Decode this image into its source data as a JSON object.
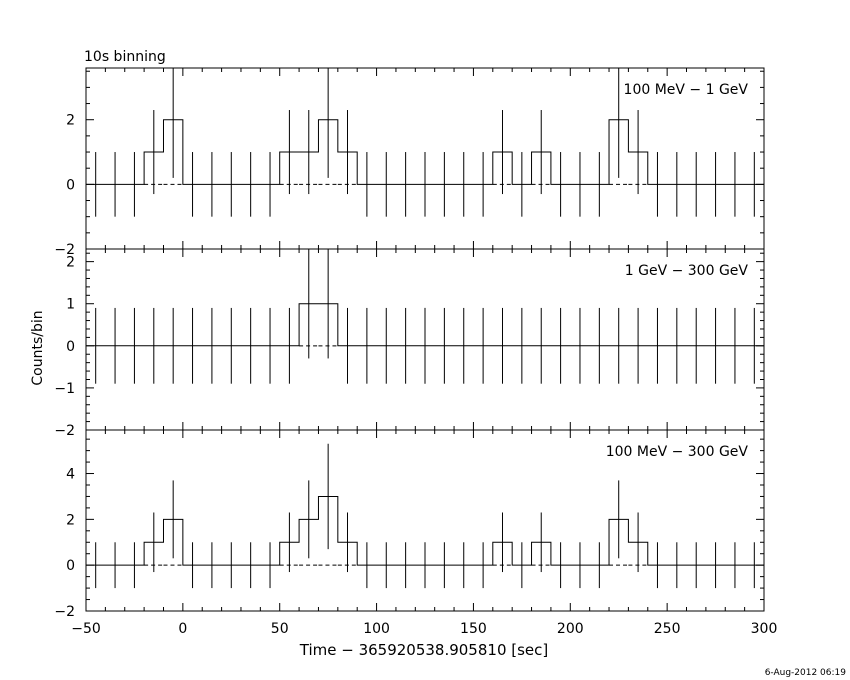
{
  "header": {
    "title": "10s binning"
  },
  "footer": {
    "timestamp": "6-Aug-2012 06:19"
  },
  "axes": {
    "xlabel": "Time − 365920538.905810 [sec]",
    "ylabel": "Counts/bin"
  },
  "chart_data": [
    {
      "type": "step",
      "label": "100 MeV − 1 GeV",
      "xlim": [
        -50,
        300
      ],
      "ylim": [
        -2,
        3.6
      ],
      "yticks": [
        -2,
        0,
        2
      ],
      "bin_width": 10,
      "bin_centers": [
        -45,
        -35,
        -25,
        -15,
        -5,
        5,
        15,
        25,
        35,
        45,
        55,
        65,
        75,
        85,
        95,
        105,
        115,
        125,
        135,
        145,
        155,
        165,
        175,
        185,
        195,
        205,
        215,
        225,
        235,
        245,
        255,
        265,
        275,
        285,
        295
      ],
      "counts": [
        0,
        0,
        0,
        1,
        2,
        0,
        0,
        0,
        0,
        0,
        1,
        1,
        2,
        1,
        0,
        0,
        0,
        0,
        0,
        0,
        0,
        1,
        0,
        1,
        0,
        0,
        0,
        2,
        1,
        0,
        0,
        0,
        0,
        0,
        0
      ],
      "errors": [
        1,
        1,
        1,
        1.3,
        1.8,
        1,
        1,
        1,
        1,
        1,
        1.3,
        1.3,
        1.8,
        1.3,
        1,
        1,
        1,
        1,
        1,
        1,
        1,
        1.3,
        1,
        1.3,
        1,
        1,
        1,
        1.8,
        1.3,
        1,
        1,
        1,
        1,
        1,
        1
      ],
      "model": [
        0,
        0,
        0,
        0,
        0,
        0,
        0,
        0,
        0,
        0,
        0,
        0,
        0,
        0,
        0,
        0,
        0,
        0,
        0,
        0,
        0,
        0,
        0,
        0,
        0,
        0,
        0,
        0,
        0,
        0,
        0,
        0,
        0,
        0,
        0
      ]
    },
    {
      "type": "step",
      "label": "1 GeV − 300 GeV",
      "xlim": [
        -50,
        300
      ],
      "ylim": [
        -2,
        2.3
      ],
      "yticks": [
        -2,
        -1,
        0,
        1,
        2
      ],
      "bin_width": 10,
      "bin_centers": [
        -45,
        -35,
        -25,
        -15,
        -5,
        5,
        15,
        25,
        35,
        45,
        55,
        65,
        75,
        85,
        95,
        105,
        115,
        125,
        135,
        145,
        155,
        165,
        175,
        185,
        195,
        205,
        215,
        225,
        235,
        245,
        255,
        265,
        275,
        285,
        295
      ],
      "counts": [
        0,
        0,
        0,
        0,
        0,
        0,
        0,
        0,
        0,
        0,
        0,
        1,
        1,
        0,
        0,
        0,
        0,
        0,
        0,
        0,
        0,
        0,
        0,
        0,
        0,
        0,
        0,
        0,
        0,
        0,
        0,
        0,
        0,
        0,
        0
      ],
      "errors": [
        0.9,
        0.9,
        0.9,
        0.9,
        0.9,
        0.9,
        0.9,
        0.9,
        0.9,
        0.9,
        0.9,
        1.3,
        1.3,
        0.9,
        0.9,
        0.9,
        0.9,
        0.9,
        0.9,
        0.9,
        0.9,
        0.9,
        0.9,
        0.9,
        0.9,
        0.9,
        0.9,
        0.9,
        0.9,
        0.9,
        0.9,
        0.9,
        0.9,
        0.9,
        0.9
      ],
      "model": [
        0,
        0,
        0,
        0,
        0,
        0,
        0,
        0,
        0,
        0,
        0,
        0,
        0,
        0,
        0,
        0,
        0,
        0,
        0,
        0,
        0,
        0,
        0,
        0,
        0,
        0,
        0,
        0,
        0,
        0,
        0,
        0,
        0,
        0,
        0
      ]
    },
    {
      "type": "step",
      "label": "100 MeV − 300 GeV",
      "xlim": [
        -50,
        300
      ],
      "ylim": [
        -2,
        5.9
      ],
      "yticks": [
        -2,
        0,
        2,
        4
      ],
      "bin_width": 10,
      "bin_centers": [
        -45,
        -35,
        -25,
        -15,
        -5,
        5,
        15,
        25,
        35,
        45,
        55,
        65,
        75,
        85,
        95,
        105,
        115,
        125,
        135,
        145,
        155,
        165,
        175,
        185,
        195,
        205,
        215,
        225,
        235,
        245,
        255,
        265,
        275,
        285,
        295
      ],
      "counts": [
        0,
        0,
        0,
        1,
        2,
        0,
        0,
        0,
        0,
        0,
        1,
        2,
        3,
        1,
        0,
        0,
        0,
        0,
        0,
        0,
        0,
        1,
        0,
        1,
        0,
        0,
        0,
        2,
        1,
        0,
        0,
        0,
        0,
        0,
        0
      ],
      "errors": [
        1,
        1,
        1,
        1.3,
        1.7,
        1,
        1,
        1,
        1,
        1,
        1.3,
        1.7,
        2.3,
        1.3,
        1,
        1,
        1,
        1,
        1,
        1,
        1,
        1.3,
        1,
        1.3,
        1,
        1,
        1,
        1.7,
        1.3,
        1,
        1,
        1,
        1,
        1,
        1
      ],
      "model": [
        0,
        0,
        0,
        0,
        0,
        0,
        0,
        0,
        0,
        0,
        0,
        0,
        0,
        0,
        0,
        0,
        0,
        0,
        0,
        0,
        0,
        0,
        0,
        0,
        0,
        0,
        0,
        0,
        0,
        0,
        0,
        0,
        0,
        0,
        0
      ]
    }
  ],
  "xticks": [
    -50,
    0,
    50,
    100,
    150,
    200,
    250,
    300
  ]
}
